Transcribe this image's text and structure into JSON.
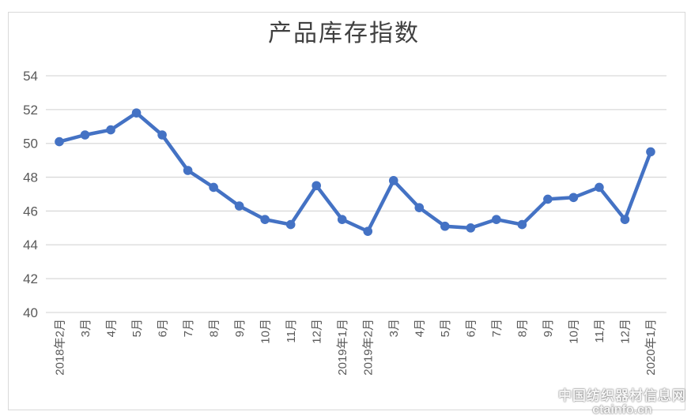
{
  "title": "产品库存指数",
  "watermark": {
    "line1": "中国纺织器材信息网",
    "line2": "ctainfo.cn"
  },
  "colors": {
    "line": "#4472C4",
    "marker": "#4472C4",
    "grid": "#D9D9D9",
    "frame_border": "#D9D9D9",
    "axis_text": "#595959",
    "title_text": "#404040",
    "background": "#FFFFFF"
  },
  "chart_data": {
    "type": "line",
    "title": "产品库存指数",
    "categories": [
      "2018年2月",
      "3月",
      "4月",
      "5月",
      "6月",
      "7月",
      "8月",
      "9月",
      "10月",
      "11月",
      "12月",
      "2019年1月",
      "2019年2月",
      "3月",
      "4月",
      "5月",
      "6月",
      "7月",
      "8月",
      "9月",
      "10月",
      "11月",
      "12月",
      "2020年1月"
    ],
    "series": [
      {
        "name": "产品库存指数",
        "values": [
          50.1,
          50.5,
          50.8,
          51.8,
          50.5,
          48.4,
          47.4,
          46.3,
          45.5,
          45.2,
          47.5,
          45.5,
          44.8,
          47.8,
          46.2,
          45.1,
          45.0,
          45.5,
          45.2,
          46.7,
          46.8,
          47.4,
          45.5,
          49.5
        ]
      }
    ],
    "xlabel": "",
    "ylabel": "",
    "ylim": [
      40,
      54
    ],
    "yticks": [
      40,
      42,
      44,
      46,
      48,
      50,
      52,
      54
    ],
    "grid": true,
    "legend": "none",
    "marker": "circle"
  }
}
